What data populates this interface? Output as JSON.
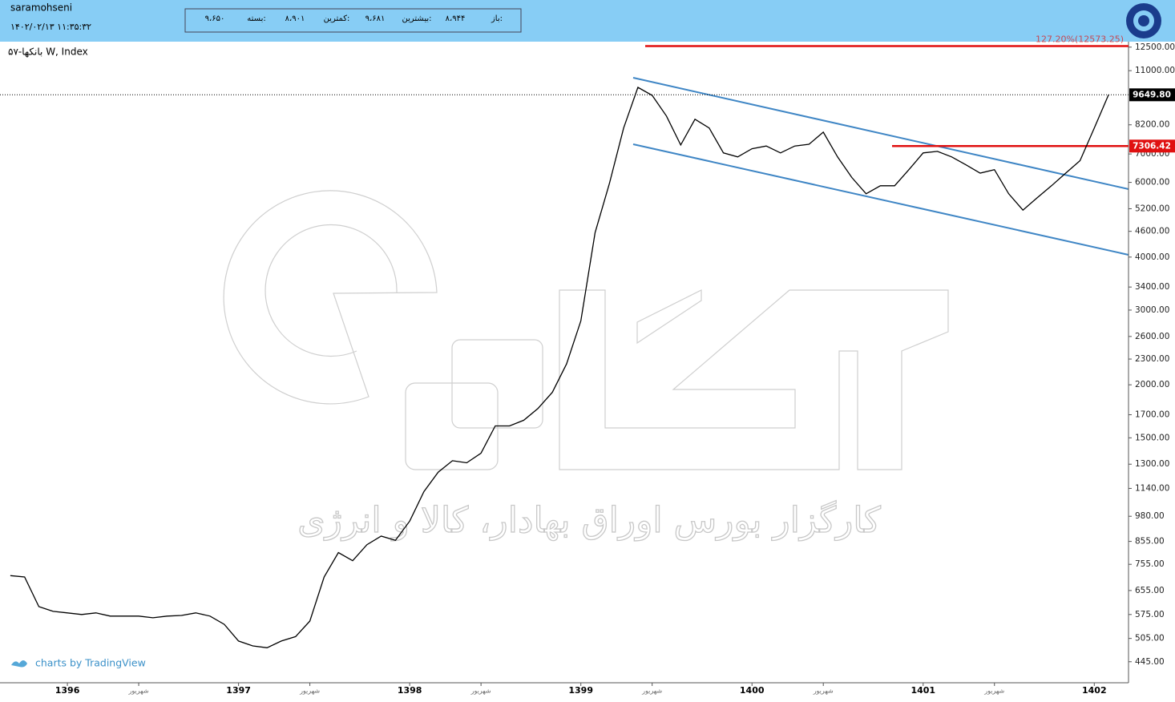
{
  "header": {
    "user": "saramohseni",
    "datetime": "۱۴۰۲/۰۲/۱۳ ۱۱:۳۵:۳۲",
    "ohlc": [
      {
        "label": "باز:",
        "value": "۸،۹۴۴"
      },
      {
        "label": "بیشترین:",
        "value": "۹،۶۸۱"
      },
      {
        "label": "کمترین:",
        "value": "۸،۹۰۱"
      },
      {
        "label": "بسته:",
        "value": "۹،۶۵۰"
      }
    ]
  },
  "chart_data": {
    "type": "line",
    "title": "بانکها-۵۷ W, Index",
    "credit": "charts by TradingView",
    "watermark": "کارگزار بورس اوراق بهادار، کالا و انرژی",
    "categories": [
      null,
      null,
      null,
      null,
      "1396",
      null,
      null,
      null,
      null,
      "شهریور",
      null,
      null,
      null,
      null,
      null,
      null,
      "1397",
      null,
      null,
      null,
      null,
      "شهریور",
      null,
      null,
      null,
      null,
      null,
      null,
      "1398",
      null,
      null,
      null,
      null,
      "شهریور",
      null,
      null,
      null,
      null,
      null,
      null,
      "1399",
      null,
      null,
      null,
      null,
      "شهریور",
      null,
      null,
      null,
      null,
      null,
      null,
      "1400",
      null,
      null,
      null,
      null,
      "شهریور",
      null,
      null,
      null,
      null,
      null,
      null,
      "1401",
      null,
      null,
      null,
      null,
      "شهریور",
      null,
      null,
      null,
      null,
      null,
      null,
      "1402",
      null
    ],
    "series": [
      {
        "name": "بانکها-۵۷",
        "color": "#000000",
        "values": [
          710,
          705,
          600,
          585,
          580,
          575,
          580,
          570,
          570,
          570,
          565,
          570,
          572,
          580,
          570,
          545,
          498,
          485,
          480,
          498,
          510,
          555,
          705,
          805,
          770,
          840,
          880,
          860,
          955,
          1120,
          1245,
          1325,
          1310,
          1380,
          1600,
          1600,
          1650,
          1760,
          1920,
          2240,
          2830,
          4570,
          5960,
          8060,
          10050,
          9620,
          8600,
          7350,
          8450,
          8060,
          7040,
          6890,
          7200,
          7310,
          7040,
          7310,
          7380,
          7880,
          6890,
          6160,
          5640,
          5890,
          5890,
          6430,
          7040,
          7100,
          6890,
          6600,
          6310,
          6430,
          5640,
          5160,
          5520,
          5890,
          6310,
          6750,
          8060,
          9649.8
        ]
      }
    ],
    "log_scale": true,
    "ylim": [
      397,
      12875
    ],
    "yticks": [
      {
        "value": 445,
        "label": "445.00"
      },
      {
        "value": 505,
        "label": "505.00"
      },
      {
        "value": 575,
        "label": "575.00"
      },
      {
        "value": 655,
        "label": "655.00"
      },
      {
        "value": 755,
        "label": "755.00"
      },
      {
        "value": 855,
        "label": "855.00"
      },
      {
        "value": 980,
        "label": "980.00"
      },
      {
        "value": 1140,
        "label": "1140.00"
      },
      {
        "value": 1300,
        "label": "1300.00"
      },
      {
        "value": 1500,
        "label": "1500.00"
      },
      {
        "value": 1700,
        "label": "1700.00"
      },
      {
        "value": 2000,
        "label": "2000.00"
      },
      {
        "value": 2300,
        "label": "2300.00"
      },
      {
        "value": 2600,
        "label": "2600.00"
      },
      {
        "value": 3000,
        "label": "3000.00"
      },
      {
        "value": 3400,
        "label": "3400.00"
      },
      {
        "value": 4000,
        "label": "4000.00"
      },
      {
        "value": 4600,
        "label": "4600.00"
      },
      {
        "value": 5200,
        "label": "5200.00"
      },
      {
        "value": 6000,
        "label": "6000.00"
      },
      {
        "value": 7000,
        "label": "7000.00"
      },
      {
        "value": 8200,
        "label": "8200.00"
      },
      {
        "value": 11000,
        "label": "11000.00"
      },
      {
        "value": 12500,
        "label": "12500.00"
      }
    ],
    "last_price": {
      "value": 9649.8,
      "label": "9649.80",
      "color": "#000000"
    },
    "levels": [
      {
        "value": 7306.42,
        "label": "7306.42",
        "color": "#e01010"
      },
      {
        "value": 12573.25,
        "label": "127.20%(12573.25)",
        "color": "#e01010"
      }
    ]
  }
}
